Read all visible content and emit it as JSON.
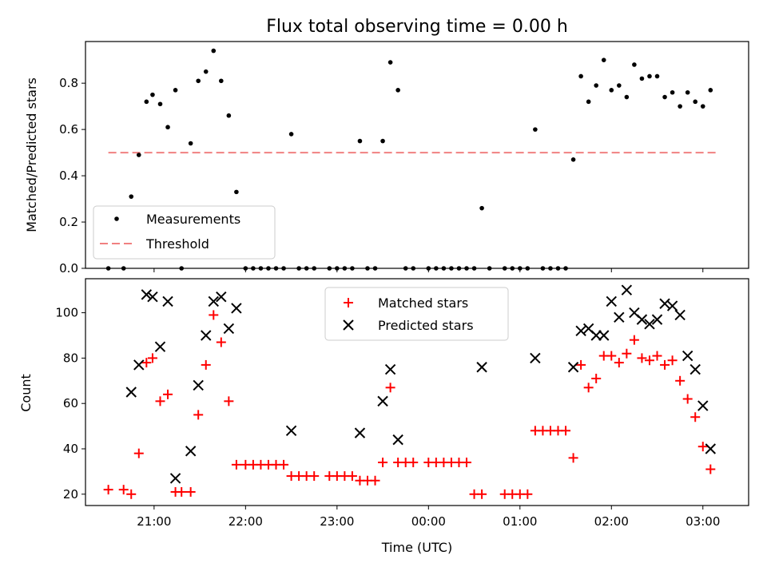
{
  "chart_data": [
    {
      "type": "scatter",
      "title": "Flux total observing time = 0.00 h",
      "ylabel": "Matched/Predicted stars",
      "ylim": [
        0,
        0.98
      ],
      "yticks": [
        "0.0",
        "0.2",
        "0.4",
        "0.6",
        "0.8"
      ],
      "legend": {
        "placement": "lower-left",
        "entries": [
          "Measurements",
          "Threshold"
        ]
      },
      "threshold": {
        "name": "Threshold",
        "value": 0.5,
        "x_start": "20:30",
        "x_end": "03:10",
        "color": "#f08080"
      },
      "series": [
        {
          "name": "Measurements",
          "color": "#000000",
          "points": [
            [
              "20:30",
              0
            ],
            [
              "20:40",
              0
            ],
            [
              "20:45",
              0.31
            ],
            [
              "20:50",
              0.49
            ],
            [
              "20:55",
              0.72
            ],
            [
              "20:59",
              0.75
            ],
            [
              "21:04",
              0.71
            ],
            [
              "21:09",
              0.61
            ],
            [
              "21:14",
              0.77
            ],
            [
              "21:18",
              0
            ],
            [
              "21:24",
              0.54
            ],
            [
              "21:29",
              0.81
            ],
            [
              "21:34",
              0.85
            ],
            [
              "21:39",
              0.94
            ],
            [
              "21:44",
              0.81
            ],
            [
              "21:49",
              0.66
            ],
            [
              "21:54",
              0.33
            ],
            [
              "22:00",
              0
            ],
            [
              "22:05",
              0
            ],
            [
              "22:10",
              0
            ],
            [
              "22:15",
              0
            ],
            [
              "22:20",
              0
            ],
            [
              "22:25",
              0
            ],
            [
              "22:30",
              0.58
            ],
            [
              "22:35",
              0
            ],
            [
              "22:40",
              0
            ],
            [
              "22:45",
              0
            ],
            [
              "22:55",
              0
            ],
            [
              "23:00",
              0
            ],
            [
              "23:05",
              0
            ],
            [
              "23:10",
              0
            ],
            [
              "23:15",
              0.55
            ],
            [
              "23:20",
              0
            ],
            [
              "23:25",
              0
            ],
            [
              "23:30",
              0.55
            ],
            [
              "23:35",
              0.89
            ],
            [
              "23:40",
              0.77
            ],
            [
              "23:45",
              0
            ],
            [
              "23:50",
              0
            ],
            [
              "24:00",
              0
            ],
            [
              "24:05",
              0
            ],
            [
              "24:10",
              0
            ],
            [
              "24:15",
              0
            ],
            [
              "24:20",
              0
            ],
            [
              "24:25",
              0
            ],
            [
              "24:30",
              0
            ],
            [
              "24:35",
              0.26
            ],
            [
              "24:40",
              0
            ],
            [
              "24:50",
              0
            ],
            [
              "24:55",
              0
            ],
            [
              "25:00",
              0
            ],
            [
              "25:05",
              0
            ],
            [
              "25:10",
              0.6
            ],
            [
              "25:15",
              0
            ],
            [
              "25:20",
              0
            ],
            [
              "25:25",
              0
            ],
            [
              "25:30",
              0
            ],
            [
              "25:35",
              0.47
            ],
            [
              "25:40",
              0.83
            ],
            [
              "25:45",
              0.72
            ],
            [
              "25:50",
              0.79
            ],
            [
              "25:55",
              0.9
            ],
            [
              "26:00",
              0.77
            ],
            [
              "26:05",
              0.79
            ],
            [
              "26:10",
              0.74
            ],
            [
              "26:15",
              0.88
            ],
            [
              "26:20",
              0.82
            ],
            [
              "26:25",
              0.83
            ],
            [
              "26:30",
              0.83
            ],
            [
              "26:35",
              0.74
            ],
            [
              "26:40",
              0.76
            ],
            [
              "26:45",
              0.7
            ],
            [
              "26:50",
              0.76
            ],
            [
              "26:55",
              0.72
            ],
            [
              "27:00",
              0.7
            ],
            [
              "27:05",
              0.77
            ]
          ]
        }
      ]
    },
    {
      "type": "scatter",
      "xlabel": "Time (UTC)",
      "ylabel": "Count",
      "ylim": [
        15,
        115
      ],
      "xlim": [
        "20:15",
        "03:30"
      ],
      "yticks": [
        "20",
        "40",
        "60",
        "80",
        "100"
      ],
      "xticks": [
        "21:00",
        "22:00",
        "23:00",
        "00:00",
        "01:00",
        "02:00",
        "03:00"
      ],
      "legend": {
        "placement": "top-center",
        "entries": [
          "Matched stars",
          "Predicted stars"
        ]
      },
      "series": [
        {
          "name": "Matched stars",
          "marker": "plus",
          "color": "#ff0000",
          "points": [
            [
              "20:30",
              22
            ],
            [
              "20:40",
              22
            ],
            [
              "20:45",
              20
            ],
            [
              "20:50",
              38
            ],
            [
              "20:55",
              78
            ],
            [
              "20:59",
              80
            ],
            [
              "21:04",
              61
            ],
            [
              "21:09",
              64
            ],
            [
              "21:14",
              21
            ],
            [
              "21:18",
              21
            ],
            [
              "21:24",
              21
            ],
            [
              "21:29",
              55
            ],
            [
              "21:34",
              77
            ],
            [
              "21:39",
              99
            ],
            [
              "21:44",
              87
            ],
            [
              "21:49",
              61
            ],
            [
              "21:54",
              33
            ],
            [
              "22:00",
              33
            ],
            [
              "22:05",
              33
            ],
            [
              "22:10",
              33
            ],
            [
              "22:15",
              33
            ],
            [
              "22:20",
              33
            ],
            [
              "22:25",
              33
            ],
            [
              "22:30",
              28
            ],
            [
              "22:35",
              28
            ],
            [
              "22:40",
              28
            ],
            [
              "22:45",
              28
            ],
            [
              "22:55",
              28
            ],
            [
              "23:00",
              28
            ],
            [
              "23:05",
              28
            ],
            [
              "23:10",
              28
            ],
            [
              "23:15",
              26
            ],
            [
              "23:20",
              26
            ],
            [
              "23:25",
              26
            ],
            [
              "23:30",
              34
            ],
            [
              "23:35",
              67
            ],
            [
              "23:40",
              34
            ],
            [
              "23:45",
              34
            ],
            [
              "23:50",
              34
            ],
            [
              "24:00",
              34
            ],
            [
              "24:05",
              34
            ],
            [
              "24:10",
              34
            ],
            [
              "24:15",
              34
            ],
            [
              "24:20",
              34
            ],
            [
              "24:25",
              34
            ],
            [
              "24:30",
              20
            ],
            [
              "24:35",
              20
            ],
            [
              "24:50",
              20
            ],
            [
              "24:55",
              20
            ],
            [
              "25:00",
              20
            ],
            [
              "25:05",
              20
            ],
            [
              "25:10",
              48
            ],
            [
              "25:15",
              48
            ],
            [
              "25:20",
              48
            ],
            [
              "25:25",
              48
            ],
            [
              "25:30",
              48
            ],
            [
              "25:35",
              36
            ],
            [
              "25:40",
              77
            ],
            [
              "25:45",
              67
            ],
            [
              "25:50",
              71
            ],
            [
              "25:55",
              81
            ],
            [
              "26:00",
              81
            ],
            [
              "26:05",
              78
            ],
            [
              "26:10",
              82
            ],
            [
              "26:15",
              88
            ],
            [
              "26:20",
              80
            ],
            [
              "26:25",
              79
            ],
            [
              "26:30",
              81
            ],
            [
              "26:35",
              77
            ],
            [
              "26:40",
              79
            ],
            [
              "26:45",
              70
            ],
            [
              "26:50",
              62
            ],
            [
              "26:55",
              54
            ],
            [
              "27:00",
              41
            ],
            [
              "27:05",
              31
            ]
          ]
        },
        {
          "name": "Predicted stars",
          "marker": "x",
          "color": "#000000",
          "points": [
            [
              "20:45",
              65
            ],
            [
              "20:50",
              77
            ],
            [
              "20:55",
              108
            ],
            [
              "20:59",
              107
            ],
            [
              "21:04",
              85
            ],
            [
              "21:09",
              105
            ],
            [
              "21:14",
              27
            ],
            [
              "21:24",
              39
            ],
            [
              "21:29",
              68
            ],
            [
              "21:34",
              90
            ],
            [
              "21:39",
              105
            ],
            [
              "21:44",
              107
            ],
            [
              "21:49",
              93
            ],
            [
              "21:54",
              102
            ],
            [
              "22:30",
              48
            ],
            [
              "23:15",
              47
            ],
            [
              "23:30",
              61
            ],
            [
              "23:35",
              75
            ],
            [
              "23:40",
              44
            ],
            [
              "24:35",
              76
            ],
            [
              "25:10",
              80
            ],
            [
              "25:35",
              76
            ],
            [
              "25:40",
              92
            ],
            [
              "25:45",
              93
            ],
            [
              "25:50",
              90
            ],
            [
              "25:55",
              90
            ],
            [
              "26:00",
              105
            ],
            [
              "26:05",
              98
            ],
            [
              "26:10",
              110
            ],
            [
              "26:15",
              100
            ],
            [
              "26:20",
              97
            ],
            [
              "26:25",
              95
            ],
            [
              "26:30",
              97
            ],
            [
              "26:35",
              104
            ],
            [
              "26:40",
              103
            ],
            [
              "26:45",
              99
            ],
            [
              "26:50",
              81
            ],
            [
              "26:55",
              75
            ],
            [
              "27:00",
              59
            ],
            [
              "27:05",
              40
            ]
          ]
        }
      ]
    }
  ]
}
